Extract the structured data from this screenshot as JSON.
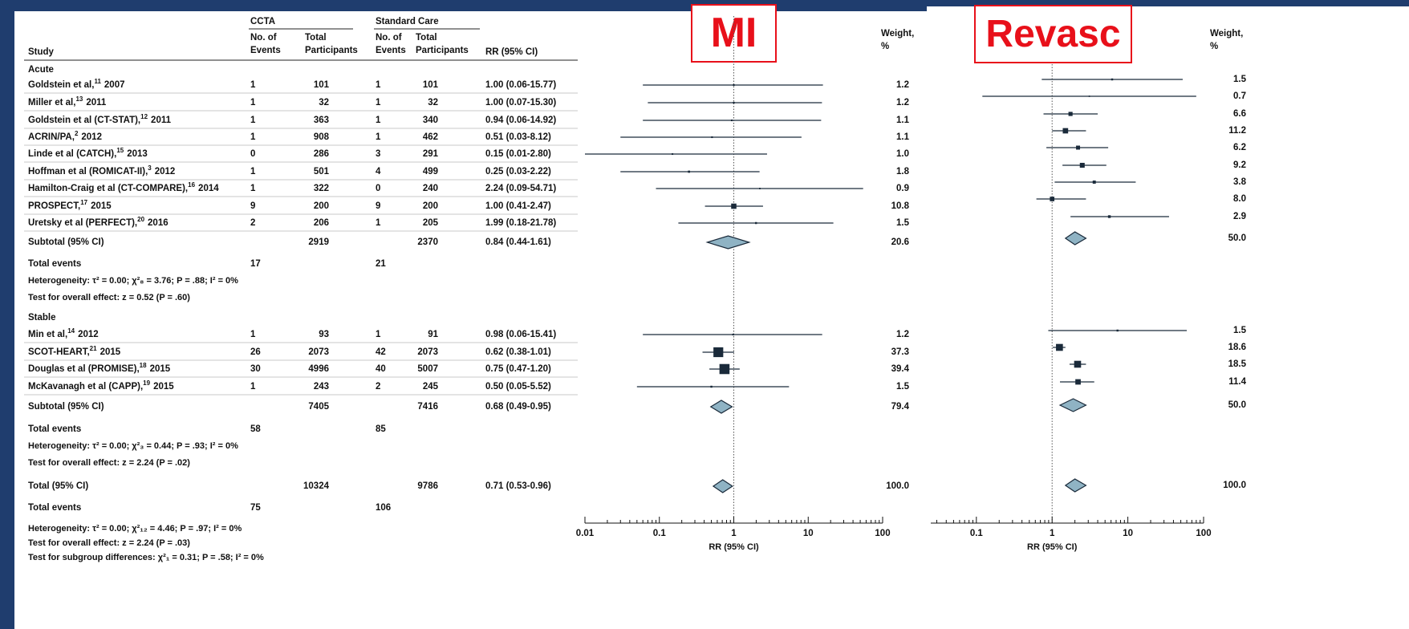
{
  "table": {
    "group_headers": [
      "CCTA",
      "Standard Care"
    ],
    "columns": [
      "Study",
      [
        "No. of",
        "Events"
      ],
      [
        "Total",
        "Participants"
      ],
      [
        "No. of",
        "Events"
      ],
      [
        "Total",
        "Participants"
      ],
      "RR (95% CI)"
    ],
    "sections": [
      {
        "name": "Acute",
        "rows": [
          {
            "study": "Goldstein et al,",
            "ref": "11",
            "year": "2007",
            "ccta_events": 1,
            "ccta_total": 101,
            "sc_events": 1,
            "sc_total": 101
          },
          {
            "study": "Miller et al,",
            "ref": "13",
            "year": "2011",
            "ccta_events": 1,
            "ccta_total": 32,
            "sc_events": 1,
            "sc_total": 32
          },
          {
            "study": "Goldstein et al (CT-STAT),",
            "ref": "12",
            "year": "2011",
            "ccta_events": 1,
            "ccta_total": 363,
            "sc_events": 1,
            "sc_total": 340
          },
          {
            "study": "ACRIN/PA,",
            "ref": "2",
            "year": "2012",
            "ccta_events": 1,
            "ccta_total": 908,
            "sc_events": 1,
            "sc_total": 462
          },
          {
            "study": "Linde et al (CATCH),",
            "ref": "15",
            "year": "2013",
            "ccta_events": 0,
            "ccta_total": 286,
            "sc_events": 3,
            "sc_total": 291
          },
          {
            "study": "Hoffman et al (ROMICAT-II),",
            "ref": "3",
            "year": "2012",
            "ccta_events": 1,
            "ccta_total": 501,
            "sc_events": 4,
            "sc_total": 499
          },
          {
            "study": "Hamilton-Craig et al (CT-COMPARE),",
            "ref": "16",
            "year": "2014",
            "ccta_events": 1,
            "ccta_total": 322,
            "sc_events": 0,
            "sc_total": 240
          },
          {
            "study": "PROSPECT,",
            "ref": "17",
            "year": "2015",
            "ccta_events": 9,
            "ccta_total": 200,
            "sc_events": 9,
            "sc_total": 200
          },
          {
            "study": "Uretsky et al (PERFECT),",
            "ref": "20",
            "year": "2016",
            "ccta_events": 2,
            "ccta_total": 206,
            "sc_events": 1,
            "sc_total": 205
          }
        ],
        "subtotal": {
          "label": "Subtotal (95% CI)",
          "ccta_total": 2919,
          "sc_total": 2370
        },
        "total_events": {
          "label": "Total events",
          "ccta": 17,
          "sc": 21
        },
        "heterogeneity": "Heterogeneity: τ² = 0.00; χ²₈ = 3.76; P = .88; I² = 0%",
        "overall_effect": "Test for overall effect: z = 0.52 (P = .60)"
      },
      {
        "name": "Stable",
        "rows": [
          {
            "study": "Min et al,",
            "ref": "14",
            "year": "2012",
            "ccta_events": 1,
            "ccta_total": 93,
            "sc_events": 1,
            "sc_total": 91
          },
          {
            "study": "SCOT-HEART,",
            "ref": "21",
            "year": "2015",
            "ccta_events": 26,
            "ccta_total": 2073,
            "sc_events": 42,
            "sc_total": 2073
          },
          {
            "study": "Douglas et al (PROMISE),",
            "ref": "18",
            "year": "2015",
            "ccta_events": 30,
            "ccta_total": 4996,
            "sc_events": 40,
            "sc_total": 5007
          },
          {
            "study": "McKavanagh et al (CAPP),",
            "ref": "19",
            "year": "2015",
            "ccta_events": 1,
            "ccta_total": 243,
            "sc_events": 2,
            "sc_total": 245
          }
        ],
        "subtotal": {
          "label": "Subtotal (95% CI)",
          "ccta_total": 7405,
          "sc_total": 7416
        },
        "total_events": {
          "label": "Total events",
          "ccta": 58,
          "sc": 85
        },
        "heterogeneity": "Heterogeneity: τ² = 0.00; χ²₃ = 0.44; P = .93; I² = 0%",
        "overall_effect": "Test for overall effect: z = 2.24 (P = .02)"
      }
    ],
    "total": {
      "label": "Total (95% CI)",
      "ccta_total": 10324,
      "sc_total": 9786
    },
    "total_events": {
      "label": "Total events",
      "ccta": 75,
      "sc": 106
    },
    "footer": [
      "Heterogeneity: τ² = 0.00; χ²₁₂ = 4.46; P = .97; I² = 0%",
      "Test for overall effect: z = 2.24 (P = .03)",
      "Test for subgroup differences: χ²₁ = 0.31; P = .58; I² = 0%"
    ]
  },
  "chart_data": [
    {
      "type": "forest",
      "title": "MI",
      "xlabel": "RR (95% CI)",
      "weight_header": [
        "Weight,",
        "%"
      ],
      "log_x": true,
      "xlim": [
        0.01,
        100
      ],
      "xticks": [
        0.01,
        0.1,
        1,
        10,
        100
      ],
      "null_line": 1,
      "color": "#1a2a3a",
      "diamond_color": "#8fb3c4",
      "title_color": "#e8101a",
      "studies": {
        "values": [
          1.0,
          1.0,
          0.94,
          0.51,
          0.15,
          0.25,
          2.24,
          1.0,
          1.99,
          0.98,
          0.62,
          0.75,
          0.5
        ],
        "lower": [
          0.06,
          0.07,
          0.06,
          0.03,
          0.01,
          0.03,
          0.09,
          0.41,
          0.18,
          0.06,
          0.38,
          0.47,
          0.05
        ],
        "upper": [
          15.77,
          15.3,
          14.92,
          8.12,
          2.8,
          2.22,
          54.71,
          2.47,
          21.78,
          15.41,
          1.01,
          1.2,
          5.52
        ],
        "value_labels": [
          "1.00 (0.06-15.77)",
          "1.00 (0.07-15.30)",
          "0.94 (0.06-14.92)",
          "0.51 (0.03-8.12)",
          "0.15 (0.01-2.80)",
          "0.25 (0.03-2.22)",
          "2.24 (0.09-54.71)",
          "1.00 (0.41-2.47)",
          "1.99 (0.18-21.78)",
          "0.98 (0.06-15.41)",
          "0.62 (0.38-1.01)",
          "0.75 (0.47-1.20)",
          "0.50 (0.05-5.52)"
        ],
        "weights": [
          1.2,
          1.2,
          1.1,
          1.1,
          1.0,
          1.8,
          0.9,
          10.8,
          1.5,
          1.2,
          37.3,
          39.4,
          1.5
        ],
        "weight_labels": [
          "1.2",
          "1.2",
          "1.1",
          "1.1",
          "1.0",
          "1.8",
          "0.9",
          "10.8",
          "1.5",
          "1.2",
          "37.3",
          "39.4",
          "1.5"
        ]
      },
      "pooled": {
        "values": [
          0.84,
          0.68,
          0.71
        ],
        "lower": [
          0.44,
          0.49,
          0.53
        ],
        "upper": [
          1.61,
          0.95,
          0.96
        ],
        "value_labels": [
          "0.84 (0.44-1.61)",
          "0.68 (0.49-0.95)",
          "0.71 (0.53-0.96)"
        ],
        "weights": [
          20.6,
          79.4,
          100.0
        ],
        "weight_labels": [
          "20.6",
          "79.4",
          "100.0"
        ]
      }
    },
    {
      "type": "forest",
      "title": "Revasc",
      "xlabel": "RR (95% CI)",
      "weight_header": [
        "Weight,",
        "%"
      ],
      "log_x": true,
      "xlim": [
        0.025,
        100
      ],
      "xticks": [
        0.1,
        1,
        10,
        100
      ],
      "null_line": 1,
      "color": "#1a2a3a",
      "diamond_color": "#8fb3c4",
      "title_color": "#e8101a",
      "studies": {
        "values": [
          6.2,
          3.1,
          1.75,
          1.5,
          2.2,
          2.5,
          3.6,
          1.0,
          5.7,
          7.3,
          1.25,
          2.17,
          2.2
        ],
        "lower": [
          0.73,
          0.12,
          0.77,
          1.0,
          0.84,
          1.37,
          1.08,
          0.62,
          1.75,
          0.89,
          1.02,
          1.7,
          1.27
        ],
        "upper": [
          53,
          80,
          4.0,
          2.8,
          5.5,
          5.2,
          12.7,
          2.8,
          35,
          60,
          1.5,
          2.8,
          3.6
        ],
        "weights": [
          1.5,
          0.7,
          6.6,
          11.2,
          6.2,
          9.2,
          3.8,
          8.0,
          2.9,
          1.5,
          18.6,
          18.5,
          11.4
        ],
        "weight_labels": [
          "1.5",
          "0.7",
          "6.6",
          "11.2",
          "6.2",
          "9.2",
          "3.8",
          "8.0",
          "2.9",
          "1.5",
          "18.6",
          "18.5",
          "11.4"
        ]
      },
      "pooled": {
        "values": [
          2.0,
          1.9,
          2.0
        ],
        "lower": [
          1.5,
          1.27,
          1.5
        ],
        "upper": [
          2.8,
          2.8,
          2.8
        ],
        "weights": [
          50.0,
          50.0,
          100.0
        ],
        "weight_labels": [
          "50.0",
          "50.0",
          "100.0"
        ]
      }
    }
  ]
}
